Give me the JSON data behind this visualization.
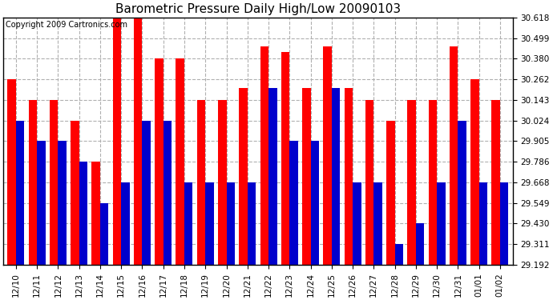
{
  "title": "Barometric Pressure Daily High/Low 20090103",
  "copyright": "Copyright 2009 Cartronics.com",
  "categories": [
    "12/10",
    "12/11",
    "12/12",
    "12/13",
    "12/14",
    "12/15",
    "12/16",
    "12/17",
    "12/18",
    "12/19",
    "12/20",
    "12/21",
    "12/22",
    "12/23",
    "12/24",
    "12/25",
    "12/26",
    "12/27",
    "12/28",
    "12/29",
    "12/30",
    "12/31",
    "01/01",
    "01/02"
  ],
  "highs": [
    30.262,
    30.143,
    30.143,
    30.024,
    29.786,
    30.618,
    30.618,
    30.38,
    30.38,
    30.143,
    30.143,
    30.21,
    30.45,
    30.42,
    30.21,
    30.45,
    30.21,
    30.143,
    30.024,
    30.143,
    30.143,
    30.45,
    30.262,
    30.143
  ],
  "lows": [
    30.024,
    29.905,
    29.905,
    29.786,
    29.549,
    29.668,
    30.024,
    30.024,
    29.668,
    29.668,
    29.668,
    29.668,
    30.21,
    29.905,
    29.905,
    30.21,
    29.668,
    29.668,
    29.311,
    29.43,
    29.668,
    30.024,
    29.668,
    29.668
  ],
  "high_color": "#ff0000",
  "low_color": "#0000cc",
  "bg_color": "#ffffff",
  "grid_color": "#b0b0b0",
  "ylim_min": 29.192,
  "ylim_max": 30.618,
  "yticks": [
    29.192,
    29.311,
    29.43,
    29.549,
    29.668,
    29.786,
    29.905,
    30.024,
    30.143,
    30.262,
    30.38,
    30.499,
    30.618
  ],
  "title_fontsize": 11,
  "copyright_fontsize": 7,
  "bar_width": 0.4
}
